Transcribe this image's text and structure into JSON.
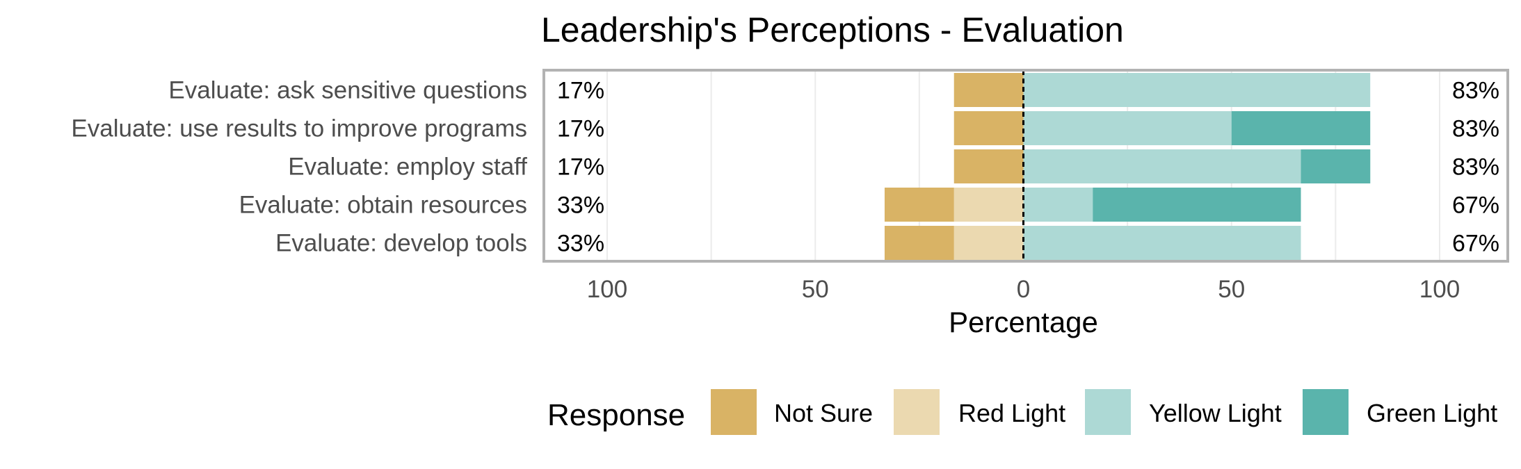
{
  "chart_data": {
    "type": "bar",
    "orientation": "horizontal-diverging",
    "title": "Leadership's Perceptions - Evaluation",
    "xlabel": "Percentage",
    "ylabel": "",
    "xlim": [
      -100,
      100
    ],
    "x_ticks": [
      -100,
      -50,
      0,
      50,
      100
    ],
    "x_tick_labels": [
      "100",
      "50",
      "0",
      "50",
      "100"
    ],
    "grid": true,
    "legend": {
      "title": "Response",
      "position": "bottom",
      "entries": [
        "Not Sure",
        "Red Light",
        "Yellow Light",
        "Green Light"
      ]
    },
    "categories": [
      "Evaluate: ask sensitive questions",
      "Evaluate: use results to improve programs",
      "Evaluate: employ staff",
      "Evaluate: obtain resources",
      "Evaluate: develop tools"
    ],
    "series": [
      {
        "name": "Not Sure",
        "side": "negative",
        "color": "#d9b365",
        "values": [
          16.67,
          16.67,
          16.67,
          16.67,
          16.67
        ]
      },
      {
        "name": "Red Light",
        "side": "negative",
        "color": "#ebd9b0",
        "values": [
          0,
          0,
          0,
          16.67,
          16.67
        ]
      },
      {
        "name": "Yellow Light",
        "side": "positive",
        "color": "#add9d5",
        "values": [
          83.33,
          50,
          66.67,
          16.67,
          66.67
        ]
      },
      {
        "name": "Green Light",
        "side": "positive",
        "color": "#5ab4ac",
        "values": [
          0,
          33.33,
          16.67,
          50,
          0
        ]
      }
    ],
    "left_labels": [
      "17%",
      "17%",
      "17%",
      "33%",
      "33%"
    ],
    "right_labels": [
      "83%",
      "83%",
      "83%",
      "67%",
      "67%"
    ]
  }
}
